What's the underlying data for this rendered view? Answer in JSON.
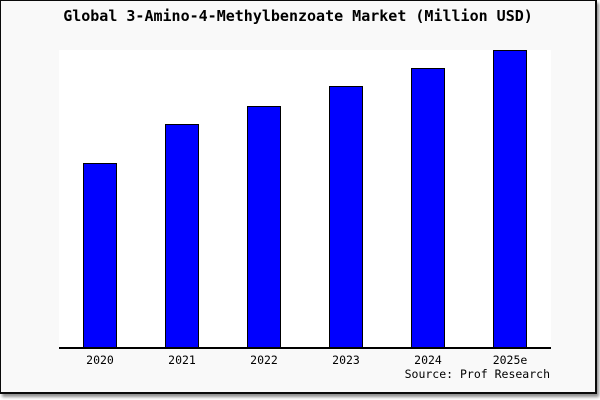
{
  "frame": {
    "background": "#f9f9f9",
    "border_color": "#0a0a0a"
  },
  "chart_data": {
    "type": "bar",
    "title": "Global 3-Amino-4-Methylbenzoate Market (Million USD)",
    "categories": [
      "2020",
      "2021",
      "2022",
      "2023",
      "2024",
      "2025e"
    ],
    "values": [
      62,
      75,
      81,
      88,
      94,
      100
    ],
    "values_note": "y-axis is unlabeled; values are relative index estimated from bar heights, 2025e bar = 100",
    "xlabel": "",
    "ylabel": "",
    "ylim": [
      0,
      100
    ],
    "grid": false,
    "legend": false,
    "bar_color": "#0000ff",
    "bar_border_color": "#000000",
    "plot_background": "#ffffff",
    "axis_line_color": "#000000"
  },
  "source": {
    "label": "Source: Prof Research"
  }
}
